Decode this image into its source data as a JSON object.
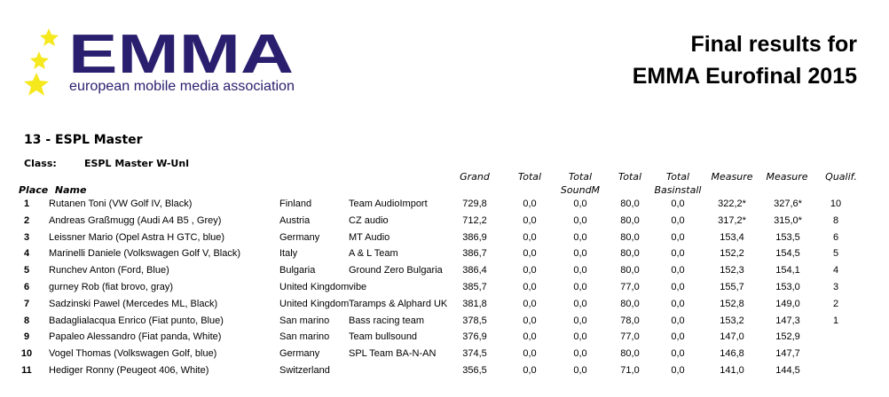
{
  "logo": {
    "main": "EMMA",
    "tagline": "european mobile media association"
  },
  "title": {
    "line1": "Final results for",
    "line2": "EMMA Eurofinal 2015"
  },
  "event": "13 - ESPL Master",
  "class_label": "Class:",
  "class_value": "ESPL Master W-Unl",
  "headers": {
    "place_name": "Place  Name",
    "grand": "Grand",
    "total1": "Total",
    "total2": [
      "Total",
      "SoundM"
    ],
    "total3": "Total",
    "total4": [
      "Total",
      "Basinstall"
    ],
    "measure1": "Measure",
    "measure2": "Measure",
    "qualif": "Qualif."
  },
  "rows": [
    {
      "place": "1",
      "name": "Rutanen Toni   (VW Golf IV,   Black)",
      "country": "Finland",
      "team": "Team AudioImport",
      "grand": "729,8",
      "t1": "0,0",
      "t2": "0,0",
      "t3": "80,0",
      "t4": "0,0",
      "m1": "322,2*",
      "m2": "327,6*",
      "q": "10"
    },
    {
      "place": "2",
      "name": "Andreas Graßmugg    (Audi A4 B5 ,   Grey)",
      "country": "Austria",
      "team": "CZ audio",
      "grand": "712,2",
      "t1": "0,0",
      "t2": "0,0",
      "t3": "80,0",
      "t4": "0,0",
      "m1": "317,2*",
      "m2": "315,0*",
      "q": "8"
    },
    {
      "place": "3",
      "name": "Leissner Mario   (Opel Astra H GTC,    blue)",
      "country": "Germany",
      "team": "MT Audio",
      "grand": "386,9",
      "t1": "0,0",
      "t2": "0,0",
      "t3": "80,0",
      "t4": "0,0",
      "m1": "153,4",
      "m2": "153,5",
      "q": "6"
    },
    {
      "place": "4",
      "name": "Marinelli Daniele   (Volkswagen Golf V,   Black)",
      "country": "Italy",
      "team": "A & L Team",
      "grand": "386,7",
      "t1": "0,0",
      "t2": "0,0",
      "t3": "80,0",
      "t4": "0,0",
      "m1": "152,2",
      "m2": "154,5",
      "q": "5"
    },
    {
      "place": "5",
      "name": "Runchev Anton   (Ford,   Blue)",
      "country": "Bulgaria",
      "team": "Ground Zero Bulgaria",
      "grand": "386,4",
      "t1": "0,0",
      "t2": "0,0",
      "t3": "80,0",
      "t4": "0,0",
      "m1": "152,3",
      "m2": "154,1",
      "q": "4"
    },
    {
      "place": "6",
      "name": "gurney Rob   (fiat brovo,   gray)",
      "country": "United Kingdom",
      "team": "vibe",
      "grand": "385,7",
      "t1": "0,0",
      "t2": "0,0",
      "t3": "77,0",
      "t4": "0,0",
      "m1": "155,7",
      "m2": "153,0",
      "q": "3"
    },
    {
      "place": "7",
      "name": "Sadzinski Pawel   (Mercedes ML,   Black)",
      "country": "United Kingdom",
      "team": "Taramps & Alphard UK",
      "grand": "381,8",
      "t1": "0,0",
      "t2": "0,0",
      "t3": "80,0",
      "t4": "0,0",
      "m1": "152,8",
      "m2": "149,0",
      "q": "2"
    },
    {
      "place": "8",
      "name": "Badaglialacqua Enrico   (Fiat punto,   Blue)",
      "country": "San marino",
      "team": "Bass racing team",
      "grand": "378,5",
      "t1": "0,0",
      "t2": "0,0",
      "t3": "78,0",
      "t4": "0,0",
      "m1": "153,2",
      "m2": "147,3",
      "q": "1"
    },
    {
      "place": "9",
      "name": "Papaleo Alessandro   (Fiat panda,   White)",
      "country": "San marino",
      "team": "Team bullsound",
      "grand": "376,9",
      "t1": "0,0",
      "t2": "0,0",
      "t3": "77,0",
      "t4": "0,0",
      "m1": "147,0",
      "m2": "152,9",
      "q": ""
    },
    {
      "place": "10",
      "name": "Vogel Thomas   (Volkswagen Golf,   blue)",
      "country": "Germany",
      "team": "SPL Team BA-N-AN",
      "grand": "374,5",
      "t1": "0,0",
      "t2": "0,0",
      "t3": "80,0",
      "t4": "0,0",
      "m1": "146,8",
      "m2": "147,7",
      "q": ""
    },
    {
      "place": "11",
      "name": "Hediger Ronny   (Peugeot 406,   White)",
      "country": "Switzerland",
      "team": "",
      "grand": "356,5",
      "t1": "0,0",
      "t2": "0,0",
      "t3": "71,0",
      "t4": "0,0",
      "m1": "141,0",
      "m2": "144,5",
      "q": ""
    }
  ],
  "colors": {
    "logo_blue": "#2a1f6e",
    "star_yellow": "#f5e81c"
  }
}
